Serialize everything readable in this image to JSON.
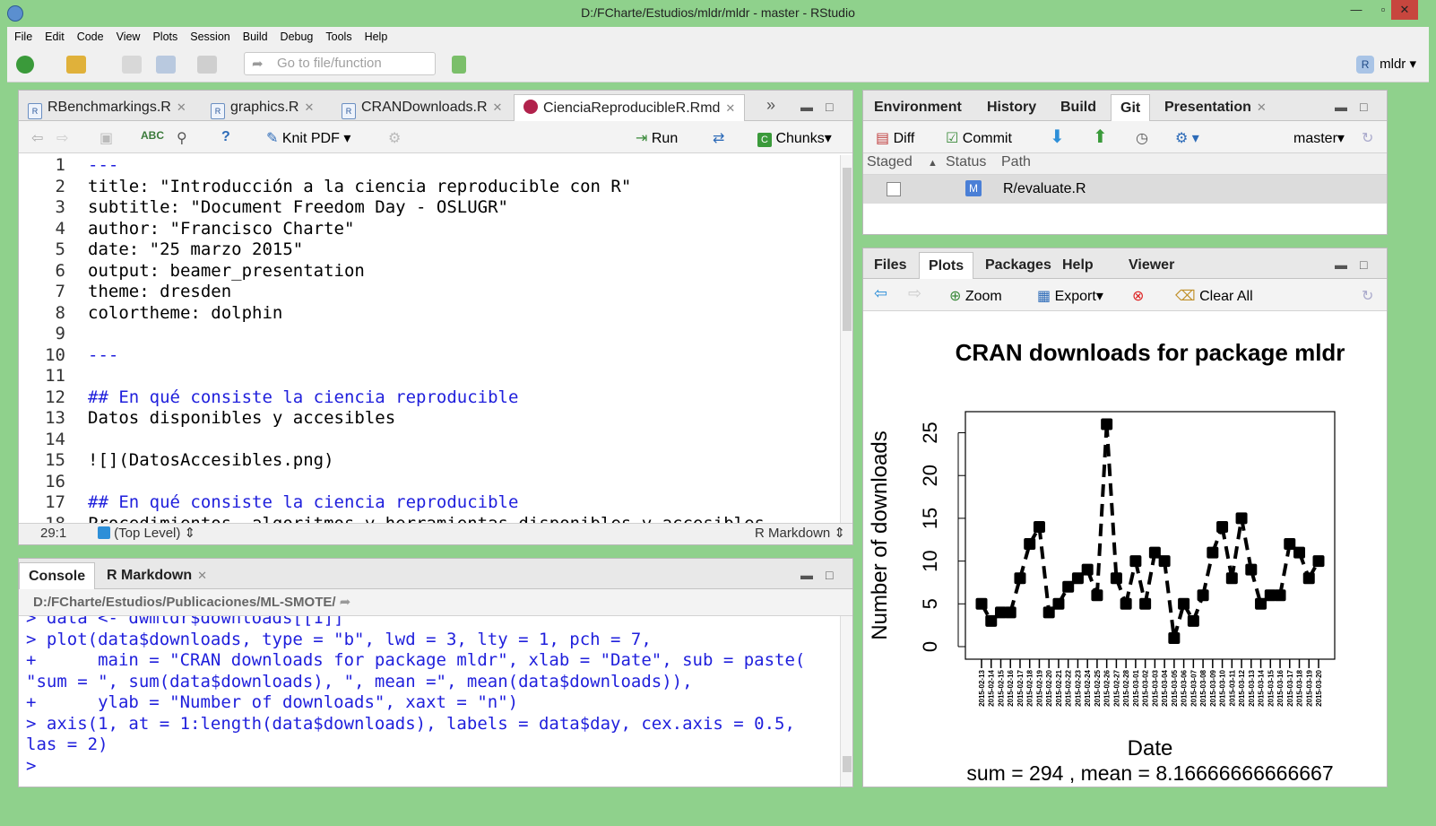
{
  "window": {
    "title": "D:/FCharte/Estudios/mldr/mldr - master - RStudio"
  },
  "menu": [
    "File",
    "Edit",
    "Code",
    "View",
    "Plots",
    "Session",
    "Build",
    "Debug",
    "Tools",
    "Help"
  ],
  "toolbar": {
    "goto_placeholder": "Go to file/function",
    "project": "mldr"
  },
  "editor": {
    "tabs": [
      "RBenchmarkings.R",
      "graphics.R",
      "CRANDownloads.R",
      "CienciaReproducibleR.Rmd"
    ],
    "toolbar": {
      "knit": "Knit PDF",
      "run": "Run",
      "chunks": "Chunks"
    },
    "lines": [
      {
        "n": "1",
        "text": "---",
        "blue": true
      },
      {
        "n": "2",
        "text": "title: \"Introducción a la ciencia reproducible con R\"",
        "blue": false
      },
      {
        "n": "3",
        "text": "subtitle: \"Document Freedom Day - OSLUGR\"",
        "blue": false
      },
      {
        "n": "4",
        "text": "author: \"Francisco Charte\"",
        "blue": false
      },
      {
        "n": "5",
        "text": "date: \"25 marzo 2015\"",
        "blue": false
      },
      {
        "n": "6",
        "text": "output: beamer_presentation",
        "blue": false
      },
      {
        "n": "7",
        "text": "theme: dresden",
        "blue": false
      },
      {
        "n": "8",
        "text": "colortheme: dolphin",
        "blue": false
      },
      {
        "n": "9",
        "text": "",
        "blue": false
      },
      {
        "n": "10",
        "text": "---",
        "blue": true
      },
      {
        "n": "11",
        "text": "",
        "blue": false
      },
      {
        "n": "12",
        "text": "## En qué consiste la ciencia reproducible",
        "blue": true
      },
      {
        "n": "13",
        "text": "Datos disponibles y accesibles",
        "blue": false
      },
      {
        "n": "14",
        "text": "",
        "blue": false
      },
      {
        "n": "15",
        "text": "![](DatosAccesibles.png)",
        "blue": false
      },
      {
        "n": "16",
        "text": "",
        "blue": false
      },
      {
        "n": "17",
        "text": "## En qué consiste la ciencia reproducible",
        "blue": true
      },
      {
        "n": "18",
        "text": "Procedimientos, algoritmos y herramientas disponibles y accesibles",
        "blue": false
      }
    ],
    "status": {
      "position": "29:1",
      "scope": "(Top Level)",
      "mode": "R Markdown"
    }
  },
  "console": {
    "tabs": [
      "Console",
      "R Markdown"
    ],
    "path": "D:/FCharte/Estudios/Publicaciones/ML-SMOTE/",
    "lines": [
      "> data <- dwmldr$downloads[[1]]",
      "> plot(data$downloads, type = \"b\", lwd = 3, lty = 1, pch = 7,",
      "+      main = \"CRAN downloads for package mldr\", xlab = \"Date\", sub = paste(",
      "\"sum = \", sum(data$downloads), \", mean =\", mean(data$downloads)),",
      "+      ylab = \"Number of downloads\", xaxt = \"n\")",
      "> axis(1, at = 1:length(data$downloads), labels = data$day, cex.axis = 0.5,",
      "las = 2)",
      "> "
    ]
  },
  "env": {
    "tabs": [
      "Environment",
      "History",
      "Build",
      "Git",
      "Presentation"
    ],
    "toolbar": {
      "diff": "Diff",
      "commit": "Commit",
      "branch": "master"
    },
    "headers": {
      "staged": "Staged",
      "status": "Status",
      "path": "Path"
    },
    "rows": [
      {
        "status": "M",
        "path": "R/evaluate.R"
      }
    ]
  },
  "files": {
    "tabs": [
      "Files",
      "Plots",
      "Packages",
      "Help",
      "Viewer"
    ],
    "toolbar": {
      "zoom": "Zoom",
      "export": "Export",
      "clear": "Clear All"
    }
  },
  "chart_data": {
    "type": "line",
    "title": "CRAN downloads for package mldr",
    "xlabel": "Date",
    "ylabel": "Number of downloads",
    "subtitle": "sum =  294 , mean = 8.16666666666667",
    "ylim": [
      0,
      26
    ],
    "yticks": [
      0,
      5,
      10,
      15,
      20,
      25
    ],
    "categories": [
      "2015-02-13",
      "2015-02-14",
      "2015-02-15",
      "2015-02-16",
      "2015-02-17",
      "2015-02-18",
      "2015-02-19",
      "2015-02-20",
      "2015-02-21",
      "2015-02-22",
      "2015-02-23",
      "2015-02-24",
      "2015-02-25",
      "2015-02-26",
      "2015-02-27",
      "2015-02-28",
      "2015-03-01",
      "2015-03-02",
      "2015-03-03",
      "2015-03-04",
      "2015-03-05",
      "2015-03-06",
      "2015-03-07",
      "2015-03-08",
      "2015-03-09",
      "2015-03-10",
      "2015-03-11",
      "2015-03-12",
      "2015-03-13",
      "2015-03-14",
      "2015-03-15",
      "2015-03-16",
      "2015-03-17",
      "2015-03-18",
      "2015-03-19",
      "2015-03-20"
    ],
    "values": [
      5,
      3,
      4,
      4,
      8,
      12,
      14,
      4,
      5,
      7,
      8,
      9,
      6,
      26,
      8,
      5,
      10,
      5,
      11,
      10,
      1,
      5,
      3,
      6,
      11,
      14,
      8,
      15,
      9,
      5,
      6,
      6,
      12,
      11,
      8,
      10
    ]
  }
}
